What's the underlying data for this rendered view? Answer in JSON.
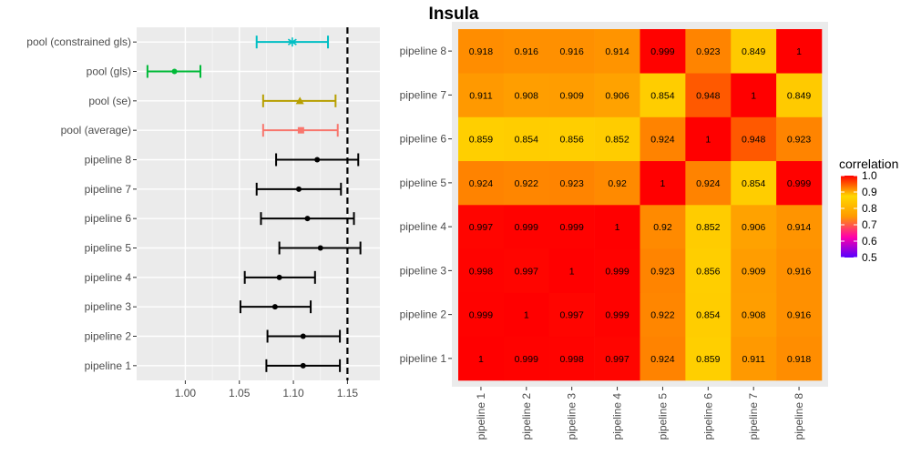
{
  "title": "Insula",
  "chart_data": [
    {
      "type": "errorbar",
      "categories": [
        "pipeline 1",
        "pipeline 2",
        "pipeline 3",
        "pipeline 4",
        "pipeline 5",
        "pipeline 6",
        "pipeline 7",
        "pipeline 8",
        "pool (average)",
        "pool (se)",
        "pool (gls)",
        "pool (constrained gls)"
      ],
      "estimates": [
        1.109,
        1.109,
        1.083,
        1.087,
        1.125,
        1.113,
        1.105,
        1.122,
        1.107,
        1.106,
        0.99,
        1.099
      ],
      "lower": [
        1.075,
        1.076,
        1.051,
        1.055,
        1.087,
        1.07,
        1.066,
        1.084,
        1.072,
        1.072,
        0.965,
        1.066
      ],
      "upper": [
        1.143,
        1.143,
        1.116,
        1.12,
        1.162,
        1.156,
        1.144,
        1.16,
        1.141,
        1.139,
        1.014,
        1.132
      ],
      "colors": [
        "#000000",
        "#000000",
        "#000000",
        "#000000",
        "#000000",
        "#000000",
        "#000000",
        "#000000",
        "#F8766D",
        "#B79F00",
        "#00BA38",
        "#00BFC4"
      ],
      "markers": [
        "dot",
        "dot",
        "dot",
        "dot",
        "dot",
        "dot",
        "dot",
        "dot",
        "square",
        "triangle",
        "dot",
        "asterisk"
      ],
      "xlim": [
        0.955,
        1.18
      ],
      "xticks": [
        "1.00",
        "1.05",
        "1.10",
        "1.15"
      ],
      "reference_line": 1.15,
      "grid": true
    },
    {
      "type": "heatmap",
      "x": [
        "pipeline 1",
        "pipeline 2",
        "pipeline 3",
        "pipeline 4",
        "pipeline 5",
        "pipeline 6",
        "pipeline 7",
        "pipeline 8"
      ],
      "y": [
        "pipeline 1",
        "pipeline 2",
        "pipeline 3",
        "pipeline 4",
        "pipeline 5",
        "pipeline 6",
        "pipeline 7",
        "pipeline 8"
      ],
      "values": [
        [
          "1",
          "0.999",
          "0.998",
          "0.997",
          "0.924",
          "0.859",
          "0.911",
          "0.918"
        ],
        [
          "0.999",
          "1",
          "0.997",
          "0.999",
          "0.922",
          "0.854",
          "0.908",
          "0.916"
        ],
        [
          "0.998",
          "0.997",
          "1",
          "0.999",
          "0.923",
          "0.856",
          "0.909",
          "0.916"
        ],
        [
          "0.997",
          "0.999",
          "0.999",
          "1",
          "0.92",
          "0.852",
          "0.906",
          "0.914"
        ],
        [
          "0.924",
          "0.922",
          "0.923",
          "0.92",
          "1",
          "0.924",
          "0.854",
          "0.999"
        ],
        [
          "0.859",
          "0.854",
          "0.856",
          "0.852",
          "0.924",
          "1",
          "0.948",
          "0.923"
        ],
        [
          "0.911",
          "0.908",
          "0.909",
          "0.906",
          "0.854",
          "0.948",
          "1",
          "0.849"
        ],
        [
          "0.918",
          "0.916",
          "0.916",
          "0.914",
          "0.999",
          "0.923",
          "0.849",
          "1"
        ]
      ],
      "legend": {
        "title": "correlation",
        "ticks": [
          "1.0",
          "0.9",
          "0.8",
          "0.7",
          "0.6",
          "0.5"
        ],
        "range": [
          0.5,
          1.0
        ],
        "colors": [
          "#5500ff",
          "#ff00aa",
          "#ff9900",
          "#ffd700",
          "#ff0000"
        ],
        "placement": "right"
      }
    }
  ]
}
